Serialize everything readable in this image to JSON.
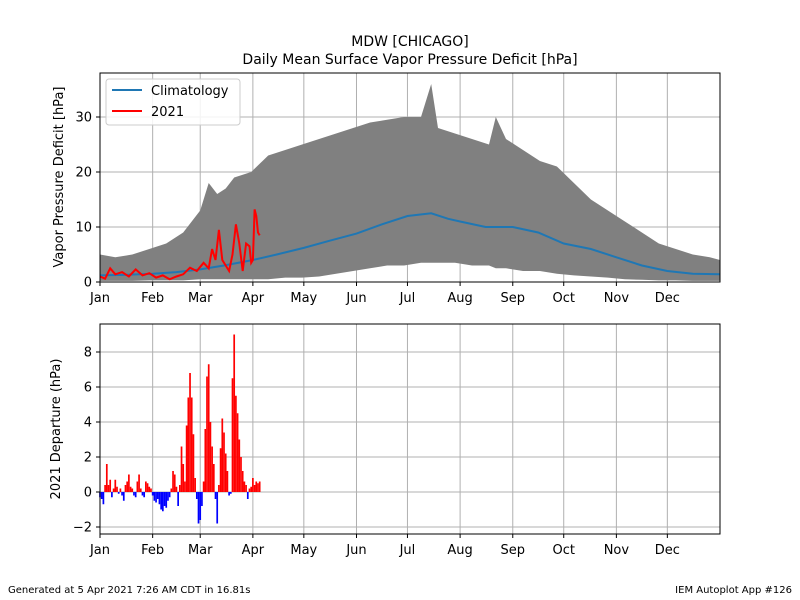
{
  "footer": {
    "generated": "Generated at 5 Apr 2021 7:26 AM CDT in 16.81s",
    "app": "IEM Autoplot App #126"
  },
  "colors": {
    "band": "#808080",
    "climatology": "#1f77b4",
    "year_line": "#ff0000",
    "positive": "#ff0000",
    "negative": "#0000ff",
    "grid": "#b0b0b0"
  },
  "chart_data": [
    {
      "type": "area",
      "title": "MDW [CHICAGO]",
      "subtitle": "Daily Mean Surface Vapor Pressure Deficit [hPa]",
      "xlabel": "",
      "ylabel": "Vapor Pressure Deficit [hPa]",
      "xlim": [
        1,
        366
      ],
      "ylim": [
        0,
        38
      ],
      "yticks": [
        0,
        10,
        20,
        30
      ],
      "month_ticks": [
        {
          "label": "Jan",
          "day": 1
        },
        {
          "label": "Feb",
          "day": 32
        },
        {
          "label": "Mar",
          "day": 60
        },
        {
          "label": "Apr",
          "day": 91
        },
        {
          "label": "May",
          "day": 121
        },
        {
          "label": "Jun",
          "day": 152
        },
        {
          "label": "Jul",
          "day": 182
        },
        {
          "label": "Aug",
          "day": 213
        },
        {
          "label": "Sep",
          "day": 244
        },
        {
          "label": "Oct",
          "day": 274
        },
        {
          "label": "Nov",
          "day": 305
        },
        {
          "label": "Dec",
          "day": 335
        }
      ],
      "grid": true,
      "legend_position": "top-left",
      "range_band": {
        "x": [
          1,
          10,
          20,
          30,
          40,
          50,
          60,
          65,
          70,
          75,
          80,
          90,
          100,
          110,
          120,
          130,
          140,
          150,
          160,
          170,
          180,
          190,
          196,
          200,
          210,
          220,
          230,
          234,
          240,
          250,
          260,
          270,
          280,
          290,
          300,
          310,
          320,
          330,
          340,
          350,
          360,
          366
        ],
        "max": [
          5,
          4.5,
          5,
          6,
          7,
          9,
          13,
          18,
          16,
          17,
          19,
          20,
          23,
          24,
          25,
          26,
          27,
          28,
          29,
          29.5,
          30,
          30,
          36,
          28,
          27,
          26,
          25,
          30,
          26,
          24,
          22,
          21,
          18,
          15,
          13,
          11,
          9,
          7,
          6,
          5,
          4.5,
          4
        ],
        "min": [
          0.2,
          0.2,
          0.2,
          0.3,
          0.3,
          0.3,
          0.5,
          0.5,
          0.5,
          0.5,
          0.5,
          0.5,
          0.5,
          0.8,
          0.8,
          1.0,
          1.5,
          2,
          2.5,
          3,
          3,
          3.5,
          3.5,
          3.5,
          3.5,
          3,
          3,
          2.5,
          2.5,
          2,
          2,
          1.5,
          1.2,
          1,
          0.8,
          0.5,
          0.4,
          0.3,
          0.3,
          0.2,
          0.2,
          0.2
        ]
      },
      "series": [
        {
          "name": "Climatology",
          "x": [
            1,
            15,
            32,
            46,
            60,
            74,
            91,
            105,
            121,
            136,
            152,
            167,
            182,
            196,
            206,
            213,
            228,
            244,
            259,
            274,
            290,
            305,
            320,
            335,
            350,
            366
          ],
          "values": [
            1.2,
            1.3,
            1.5,
            1.8,
            2.3,
            3.0,
            4.0,
            5.0,
            6.2,
            7.5,
            8.8,
            10.5,
            12.0,
            12.5,
            11.5,
            11.0,
            10.0,
            10.0,
            9.0,
            7.0,
            6.0,
            4.5,
            3.0,
            2.0,
            1.5,
            1.4
          ]
        },
        {
          "name": "2021",
          "x": [
            1,
            4,
            7,
            10,
            14,
            18,
            22,
            26,
            30,
            34,
            38,
            42,
            46,
            50,
            54,
            58,
            62,
            65,
            67,
            69,
            71,
            73,
            75,
            77,
            79,
            81,
            83,
            85,
            87,
            89,
            90,
            91,
            92,
            93,
            94,
            95
          ],
          "values": [
            1,
            0.6,
            2.5,
            1.4,
            1.8,
            1.0,
            2.3,
            1.2,
            1.6,
            0.8,
            1.2,
            0.5,
            1.0,
            1.4,
            2.6,
            2.0,
            3.5,
            2.5,
            6,
            4,
            9.5,
            4,
            3,
            2,
            5,
            10.5,
            7,
            2,
            7,
            6.5,
            3.5,
            4,
            13.2,
            12,
            9,
            8.5
          ]
        }
      ]
    },
    {
      "type": "bar",
      "title": "",
      "xlabel": "",
      "ylabel": "2021 Departure (hPa)",
      "xlim": [
        1,
        366
      ],
      "ylim": [
        -2.4,
        9.6
      ],
      "yticks": [
        -2,
        0,
        2,
        4,
        6,
        8
      ],
      "month_ticks": [
        {
          "label": "Jan",
          "day": 1
        },
        {
          "label": "Feb",
          "day": 32
        },
        {
          "label": "Mar",
          "day": 60
        },
        {
          "label": "Apr",
          "day": 91
        },
        {
          "label": "May",
          "day": 121
        },
        {
          "label": "Jun",
          "day": 152
        },
        {
          "label": "Jul",
          "day": 182
        },
        {
          "label": "Aug",
          "day": 213
        },
        {
          "label": "Sep",
          "day": 244
        },
        {
          "label": "Oct",
          "day": 274
        },
        {
          "label": "Nov",
          "day": 305
        },
        {
          "label": "Dec",
          "day": 335
        }
      ],
      "grid": true,
      "series": [
        {
          "name": "2021",
          "x": [
            1,
            2,
            3,
            4,
            5,
            6,
            7,
            8,
            9,
            10,
            11,
            12,
            13,
            14,
            15,
            16,
            17,
            18,
            19,
            20,
            21,
            22,
            23,
            24,
            25,
            26,
            27,
            28,
            29,
            30,
            31,
            32,
            33,
            34,
            35,
            36,
            37,
            38,
            39,
            40,
            41,
            42,
            43,
            44,
            45,
            46,
            47,
            48,
            49,
            50,
            51,
            52,
            53,
            54,
            55,
            56,
            57,
            58,
            59,
            60,
            61,
            62,
            63,
            64,
            65,
            66,
            67,
            68,
            69,
            70,
            71,
            72,
            73,
            74,
            75,
            76,
            77,
            78,
            79,
            80,
            81,
            82,
            83,
            84,
            85,
            86,
            87,
            88,
            89,
            90,
            91,
            92,
            93,
            94,
            95
          ],
          "values": [
            -0.3,
            -0.4,
            -0.7,
            0.4,
            1.6,
            0.4,
            0.7,
            -0.3,
            0.2,
            0.7,
            0.3,
            -0.1,
            0.2,
            -0.2,
            -0.5,
            0.4,
            0.6,
            1.0,
            0.3,
            0.2,
            -0.2,
            -0.3,
            0.6,
            1.0,
            0.2,
            -0.2,
            -0.3,
            0.6,
            0.5,
            0.3,
            0.2,
            -0.2,
            -0.5,
            -0.6,
            -0.4,
            -0.7,
            -1.0,
            -1.1,
            -0.8,
            -0.9,
            -0.5,
            -0.3,
            0.2,
            1.2,
            1.0,
            0.3,
            -0.8,
            0.4,
            2.6,
            1.6,
            0.6,
            3.8,
            5.4,
            6.8,
            5.4,
            3.3,
            0.8,
            -0.4,
            -1.8,
            -1.6,
            -0.8,
            0.6,
            3.6,
            6.6,
            7.3,
            4.0,
            2.6,
            1.6,
            -0.4,
            -1.8,
            0.4,
            2.5,
            4.2,
            3.4,
            2.2,
            1.2,
            -0.2,
            -0.1,
            6.5,
            9.0,
            5.5,
            4.5,
            3.0,
            2.0,
            1.2,
            0.6,
            0.4,
            -0.4,
            0.2,
            0.3,
            0.8,
            0.4,
            0.6,
            0.5,
            0.6
          ]
        }
      ]
    }
  ]
}
